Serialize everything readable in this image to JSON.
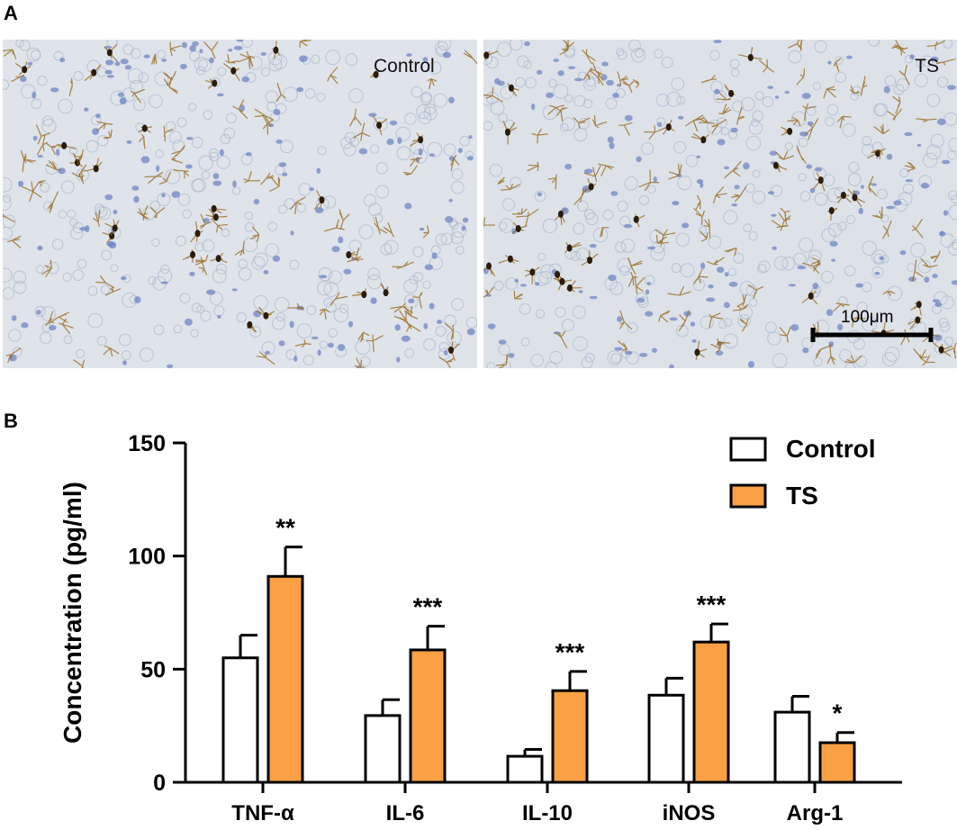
{
  "panel_labels": {
    "a": "A",
    "b": "B"
  },
  "micrographs": [
    {
      "caption": "Control",
      "background": "#dfe3ea"
    },
    {
      "caption": "TS",
      "background": "#dde2e9",
      "scale_bar_label": "100μm"
    }
  ],
  "colors": {
    "control_fill": "#ffffff",
    "ts_fill": "#f9a044",
    "stroke": "#000000"
  },
  "chart_data": {
    "type": "bar",
    "ylabel": "Concentration (pg/ml)",
    "xlabel": "",
    "ylim": [
      0,
      150
    ],
    "yticks": [
      0,
      50,
      100,
      150
    ],
    "categories": [
      "TNF-α",
      "IL-6",
      "IL-10",
      "iNOS",
      "Arg-1"
    ],
    "legend_position": "top-right",
    "series": [
      {
        "name": "Control",
        "values": [
          55,
          29.5,
          11.5,
          38.5,
          31
        ],
        "errors": [
          10,
          7,
          3,
          7.5,
          7
        ],
        "significance": [
          "",
          "",
          "",
          "",
          ""
        ]
      },
      {
        "name": "TS",
        "values": [
          91,
          58.5,
          40.5,
          62,
          17.5
        ],
        "errors": [
          13,
          10.5,
          8.5,
          8,
          4.5
        ],
        "significance": [
          "**",
          "***",
          "***",
          "***",
          "*"
        ]
      }
    ]
  }
}
